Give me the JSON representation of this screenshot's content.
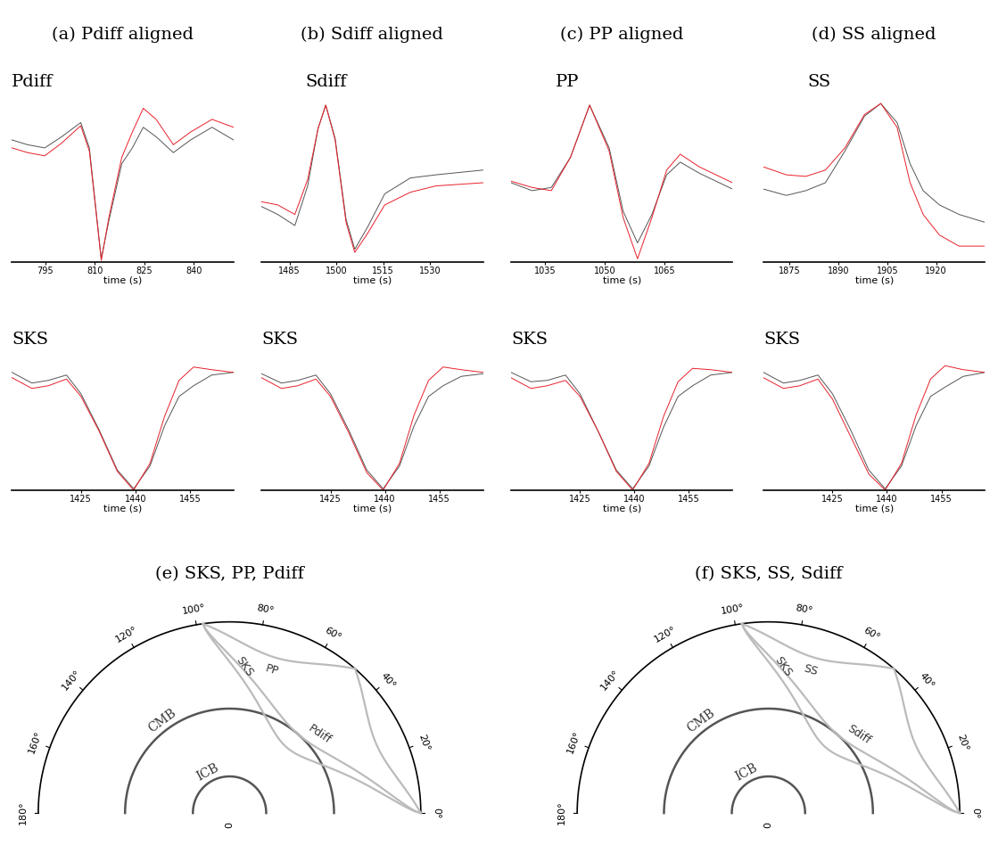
{
  "chart_data": [
    {
      "type": "line",
      "title": "(a) Pdiff aligned",
      "annotation": "Pdiff",
      "xlabel": "time (s)",
      "xlim": [
        785,
        852
      ],
      "xticks": [
        795,
        810,
        825,
        840
      ],
      "ylim": [
        0,
        1.2
      ],
      "tick_labels": "x",
      "x": [
        785,
        789.7,
        794.9,
        800,
        805.8,
        808.4,
        810.5,
        812,
        814.3,
        818.2,
        821.4,
        824.7,
        828.6,
        833.8,
        839,
        845.5,
        852
      ],
      "series": [
        {
          "color": "#555555",
          "values": [
            0.77,
            0.74,
            0.72,
            0.79,
            0.88,
            0.72,
            0.31,
            0.02,
            0.26,
            0.62,
            0.72,
            0.85,
            0.79,
            0.69,
            0.77,
            0.85,
            0.77
          ]
        },
        {
          "color": "#e8202a",
          "values": [
            0.72,
            0.69,
            0.67,
            0.75,
            0.86,
            0.7,
            0.3,
            0.01,
            0.28,
            0.66,
            0.82,
            0.97,
            0.9,
            0.74,
            0.82,
            0.9,
            0.85
          ]
        }
      ]
    },
    {
      "type": "line",
      "title": "(b) Sdiff aligned",
      "annotation": "Sdiff",
      "xlabel": "time (s)",
      "xlim": [
        1476,
        1547
      ],
      "xticks": [
        1485,
        1500,
        1515,
        1530
      ],
      "ylim": [
        0,
        1.2
      ],
      "tick_labels": "x",
      "x": [
        1476,
        1481.2,
        1486.7,
        1490.8,
        1494.1,
        1496.6,
        1499.6,
        1503.1,
        1505.9,
        1510,
        1515.5,
        1523.7,
        1531.9,
        1547
      ],
      "series": [
        {
          "color": "#555555",
          "values": [
            0.35,
            0.3,
            0.23,
            0.48,
            0.84,
            0.99,
            0.78,
            0.27,
            0.08,
            0.22,
            0.43,
            0.53,
            0.55,
            0.58
          ]
        },
        {
          "color": "#e8202a",
          "values": [
            0.38,
            0.36,
            0.3,
            0.52,
            0.84,
            0.99,
            0.77,
            0.25,
            0.06,
            0.18,
            0.36,
            0.44,
            0.48,
            0.5
          ]
        }
      ]
    },
    {
      "type": "line",
      "title": "(c) PP aligned",
      "annotation": "PP",
      "xlabel": "time (s)",
      "xlim": [
        1026.5,
        1082
      ],
      "xticks": [
        1035,
        1050,
        1065
      ],
      "ylim": [
        0,
        1.2
      ],
      "tick_labels": "x",
      "x": [
        1026.5,
        1031.8,
        1036.6,
        1041.4,
        1046.2,
        1051.1,
        1054.6,
        1058.2,
        1061.8,
        1065.5,
        1068.9,
        1073.7,
        1082
      ],
      "series": [
        {
          "color": "#555555",
          "values": [
            0.5,
            0.45,
            0.47,
            0.66,
            0.99,
            0.72,
            0.32,
            0.12,
            0.3,
            0.55,
            0.63,
            0.56,
            0.46
          ]
        },
        {
          "color": "#e8202a",
          "values": [
            0.51,
            0.47,
            0.45,
            0.66,
            0.99,
            0.7,
            0.28,
            0.02,
            0.28,
            0.58,
            0.68,
            0.6,
            0.5
          ]
        }
      ]
    },
    {
      "type": "line",
      "title": "(d) SS aligned",
      "annotation": "SS",
      "xlabel": "time (s)",
      "xlim": [
        1867,
        1935
      ],
      "xticks": [
        1875,
        1890,
        1905,
        1920
      ],
      "ylim": [
        0,
        1.2
      ],
      "tick_labels": "x",
      "x": [
        1867,
        1874,
        1880,
        1886,
        1892,
        1898,
        1903,
        1908,
        1912,
        1916,
        1921,
        1927,
        1935
      ],
      "series": [
        {
          "color": "#555555",
          "values": [
            0.46,
            0.42,
            0.45,
            0.5,
            0.7,
            0.92,
            1.0,
            0.88,
            0.62,
            0.45,
            0.36,
            0.3,
            0.25
          ]
        },
        {
          "color": "#e8202a",
          "values": [
            0.6,
            0.55,
            0.54,
            0.58,
            0.72,
            0.93,
            1.0,
            0.85,
            0.5,
            0.3,
            0.17,
            0.1,
            0.1
          ]
        }
      ]
    },
    {
      "type": "line",
      "annotation": "SKS",
      "xlabel": "time (s)",
      "xlim": [
        1406,
        1467
      ],
      "xticks": [
        1425,
        1440,
        1455
      ],
      "ylim": [
        0,
        1.2
      ],
      "tick_labels": "x",
      "x": [
        1406,
        1411.5,
        1416,
        1421,
        1425,
        1430,
        1435,
        1439.5,
        1444,
        1448,
        1452,
        1456,
        1461,
        1467
      ],
      "series": [
        {
          "color": "#555555",
          "values": [
            0.88,
            0.8,
            0.82,
            0.86,
            0.72,
            0.45,
            0.15,
            0.01,
            0.18,
            0.48,
            0.7,
            0.78,
            0.86,
            0.88
          ]
        },
        {
          "color": "#e8202a",
          "values": [
            0.84,
            0.76,
            0.78,
            0.83,
            0.7,
            0.44,
            0.14,
            0.0,
            0.2,
            0.55,
            0.82,
            0.92,
            0.9,
            0.88
          ]
        }
      ]
    },
    {
      "type": "line",
      "annotation": "SKS",
      "xlabel": "time (s)",
      "xlim": [
        1406,
        1467
      ],
      "xticks": [
        1425,
        1440,
        1455
      ],
      "ylim": [
        0,
        1.2
      ],
      "tick_labels": "x",
      "x": [
        1406,
        1411.5,
        1416,
        1421,
        1425,
        1430,
        1435,
        1439.5,
        1444,
        1448,
        1452,
        1456,
        1461,
        1467
      ],
      "series": [
        {
          "color": "#555555",
          "values": [
            0.87,
            0.8,
            0.82,
            0.86,
            0.72,
            0.45,
            0.15,
            0.01,
            0.18,
            0.48,
            0.7,
            0.78,
            0.85,
            0.87
          ]
        },
        {
          "color": "#e8202a",
          "values": [
            0.84,
            0.76,
            0.78,
            0.83,
            0.7,
            0.43,
            0.13,
            0.0,
            0.2,
            0.56,
            0.82,
            0.92,
            0.9,
            0.88
          ]
        }
      ]
    },
    {
      "type": "line",
      "annotation": "SKS",
      "xlabel": "time (s)",
      "xlim": [
        1406,
        1467
      ],
      "xticks": [
        1425,
        1440,
        1455
      ],
      "ylim": [
        0,
        1.2
      ],
      "tick_labels": "x",
      "x": [
        1406,
        1411.5,
        1416,
        1421,
        1425,
        1430,
        1435,
        1439.5,
        1444,
        1448,
        1452,
        1456,
        1461,
        1467
      ],
      "series": [
        {
          "color": "#555555",
          "values": [
            0.88,
            0.81,
            0.82,
            0.86,
            0.72,
            0.44,
            0.15,
            0.01,
            0.18,
            0.47,
            0.7,
            0.78,
            0.86,
            0.88
          ]
        },
        {
          "color": "#e8202a",
          "values": [
            0.84,
            0.76,
            0.78,
            0.82,
            0.7,
            0.44,
            0.14,
            0.0,
            0.2,
            0.55,
            0.81,
            0.91,
            0.9,
            0.88
          ]
        }
      ]
    },
    {
      "type": "line",
      "annotation": "SKS",
      "xlabel": "time (s)",
      "xlim": [
        1406,
        1467
      ],
      "xticks": [
        1425,
        1440,
        1455
      ],
      "ylim": [
        0,
        1.2
      ],
      "tick_labels": "x",
      "x": [
        1406,
        1411.5,
        1416,
        1421,
        1425,
        1430,
        1435,
        1439.5,
        1444,
        1448,
        1452,
        1456,
        1461,
        1467
      ],
      "series": [
        {
          "color": "#555555",
          "values": [
            0.88,
            0.8,
            0.82,
            0.86,
            0.72,
            0.45,
            0.15,
            0.01,
            0.18,
            0.48,
            0.7,
            0.77,
            0.85,
            0.88
          ]
        },
        {
          "color": "#e8202a",
          "values": [
            0.84,
            0.76,
            0.78,
            0.83,
            0.68,
            0.4,
            0.12,
            0.0,
            0.2,
            0.56,
            0.83,
            0.93,
            0.9,
            0.88
          ]
        }
      ]
    }
  ],
  "diagrams": [
    {
      "title": "(e) SKS, PP, Pdiff",
      "distance_deg": 98,
      "earth_radius_km": 6371,
      "boundaries": [
        {
          "label": "CMB",
          "radius_km": 3480
        },
        {
          "label": "ICB",
          "radius_km": 1221
        }
      ],
      "rays": [
        {
          "label": "SKS",
          "turning_radius_km": 2900,
          "legs": 1
        },
        {
          "label": "PP",
          "turning_radius_km": 5400,
          "legs": 2
        },
        {
          "label": "Pdiff",
          "turning_radius_km": 3480,
          "legs": 1
        }
      ],
      "angle_ticks": [
        {
          "value": 0,
          "label": "0°"
        },
        {
          "value": 20,
          "label": "20°"
        },
        {
          "value": 40,
          "label": "40°"
        },
        {
          "value": 60,
          "label": "60°"
        },
        {
          "value": 80,
          "label": "80°"
        },
        {
          "value": 100,
          "label": "100°"
        },
        {
          "value": 120,
          "label": "120°"
        },
        {
          "value": 140,
          "label": "140°"
        },
        {
          "value": 160,
          "label": "160°"
        },
        {
          "value": 180,
          "label": "180°"
        }
      ],
      "center_label": "0"
    },
    {
      "title": "(f) SKS, SS, Sdiff",
      "distance_deg": 98,
      "earth_radius_km": 6371,
      "boundaries": [
        {
          "label": "CMB",
          "radius_km": 3480
        },
        {
          "label": "ICB",
          "radius_km": 1221
        }
      ],
      "rays": [
        {
          "label": "SKS",
          "turning_radius_km": 2900,
          "legs": 1
        },
        {
          "label": "SS",
          "turning_radius_km": 5400,
          "legs": 2
        },
        {
          "label": "Sdiff",
          "turning_radius_km": 3480,
          "legs": 1
        }
      ],
      "angle_ticks": [
        {
          "value": 0,
          "label": "0°"
        },
        {
          "value": 20,
          "label": "20°"
        },
        {
          "value": 40,
          "label": "40°"
        },
        {
          "value": 60,
          "label": "60°"
        },
        {
          "value": 80,
          "label": "80°"
        },
        {
          "value": 100,
          "label": "100°"
        },
        {
          "value": 120,
          "label": "120°"
        },
        {
          "value": 140,
          "label": "140°"
        },
        {
          "value": 160,
          "label": "160°"
        },
        {
          "value": 180,
          "label": "180°"
        }
      ],
      "center_label": "0"
    }
  ]
}
